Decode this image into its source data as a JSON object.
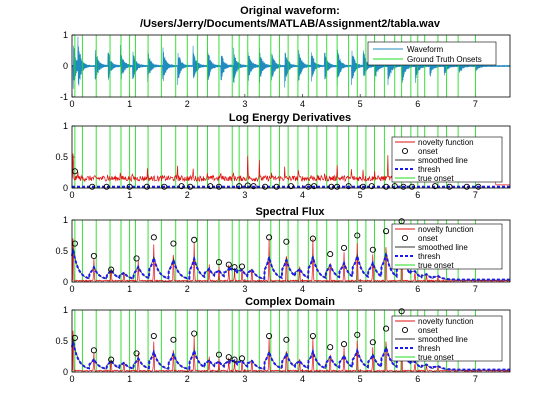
{
  "figure": {
    "background": "#ffffff"
  },
  "colors": {
    "waveform": "#1f8bbf",
    "ground_truth": "#22dd22",
    "novelty": "#e01010",
    "onset_marker": "#000000",
    "smoothed": "#333333",
    "thresh": "#1a1aee",
    "true_onset": "#22dd22"
  },
  "chart_data": [
    {
      "type": "line",
      "title": "Original waveform:",
      "subtitle": "/Users/Jerry/Documents/MATLAB/Assignment2/tabla.wav",
      "xlim": [
        0,
        7.6
      ],
      "ylim": [
        -1,
        1
      ],
      "xticks": [
        "0",
        "1",
        "2",
        "3",
        "4",
        "5",
        "6",
        "7"
      ],
      "yticks": [
        "-1",
        "0",
        "1"
      ],
      "legend": [
        "Waveform",
        "Ground Truth Onsets"
      ],
      "legend_position": "top-right",
      "series": [
        {
          "name": "Waveform",
          "strokes_at": [
            0.02,
            0.1,
            0.4,
            0.62,
            0.84,
            1.05,
            1.31,
            1.57,
            1.83,
            2.1,
            2.35,
            2.58,
            2.8,
            3.05,
            3.25,
            3.46,
            3.69,
            3.93,
            4.15,
            4.38,
            4.6,
            4.85,
            5.05,
            5.25,
            5.48,
            5.72,
            5.95,
            6.2,
            6.45,
            6.72,
            7.0
          ],
          "peak_amplitude": [
            0.85,
            0.9,
            0.7,
            0.6,
            0.7,
            0.65,
            0.6,
            0.7,
            0.65,
            0.7,
            0.65,
            0.6,
            0.7,
            0.65,
            0.6,
            0.6,
            0.7,
            0.65,
            0.6,
            0.6,
            0.7,
            0.65,
            0.6,
            0.6,
            0.75,
            0.8,
            0.7,
            0.5,
            0.4,
            0.3,
            0.2
          ]
        },
        {
          "name": "Ground Truth Onsets",
          "onsets": [
            0.05,
            0.18,
            0.42,
            0.66,
            0.85,
            1.0,
            1.1,
            1.32,
            1.55,
            1.8,
            2.0,
            2.18,
            2.35,
            2.55,
            2.78,
            2.9,
            3.05,
            3.25,
            3.45,
            3.6,
            3.75,
            3.92,
            4.1,
            4.25,
            4.42,
            4.6,
            4.8,
            4.95,
            5.1,
            5.25,
            5.42,
            5.6,
            5.72,
            5.88,
            6.0,
            6.12,
            6.35,
            6.5,
            6.7,
            7.0
          ]
        }
      ]
    },
    {
      "type": "line",
      "title": "Log Energy Derivatives",
      "xlim": [
        0,
        7.6
      ],
      "ylim": [
        0,
        1
      ],
      "xticks": [
        "0",
        "1",
        "2",
        "3",
        "4",
        "5",
        "6",
        "7"
      ],
      "yticks": [
        "0",
        "0.5",
        "1"
      ],
      "legend": [
        "novelty function",
        "onset",
        "smoothed line",
        "thresh",
        "true onset"
      ],
      "legend_position": "right",
      "peaks": [
        0.02,
        0.1,
        0.4,
        0.62,
        0.84,
        1.05,
        1.31,
        1.57,
        1.83,
        2.1,
        2.35,
        2.58,
        2.8,
        3.05,
        3.25,
        3.46,
        3.69,
        3.93,
        4.15,
        4.38,
        4.6,
        4.85,
        5.05,
        5.25,
        5.48,
        5.72,
        5.95,
        6.2,
        6.45,
        6.72,
        7.0
      ],
      "peak_heights": [
        0.75,
        0.3,
        0.25,
        0.3,
        0.35,
        0.3,
        0.35,
        0.2,
        0.45,
        0.4,
        0.3,
        0.35,
        0.35,
        0.6,
        0.5,
        0.3,
        0.35,
        0.4,
        0.3,
        0.3,
        0.45,
        0.4,
        0.3,
        0.35,
        0.55,
        0.3,
        0.35,
        0.25,
        0.2,
        0.2,
        0.15
      ],
      "noise_floor": 0.2,
      "thresh_level": 0.02,
      "onsets_x": [
        0.05,
        0.35,
        0.6,
        1.0,
        1.3,
        1.6,
        1.9,
        2.05,
        2.4,
        2.55,
        2.9,
        3.05,
        3.15,
        3.35,
        3.55,
        3.8,
        4.1,
        4.2,
        4.5,
        4.6,
        4.8,
        5.05,
        5.2,
        5.45,
        5.6,
        5.75,
        5.9,
        6.3,
        6.55,
        6.85,
        7.05
      ],
      "onsets_y": [
        0.27,
        0.02,
        0.02,
        0.02,
        0.02,
        0.02,
        0.03,
        0.02,
        0.03,
        0.02,
        0.03,
        0.04,
        0.03,
        0.02,
        0.02,
        0.03,
        0.02,
        0.03,
        0.02,
        0.02,
        0.03,
        0.02,
        0.03,
        0.02,
        0.03,
        0.02,
        0.02,
        0.03,
        0.02,
        0.02,
        0.02
      ]
    },
    {
      "type": "line",
      "title": "Spectral Flux",
      "xlim": [
        0,
        7.6
      ],
      "ylim": [
        0,
        1
      ],
      "xticks": [
        "0",
        "1",
        "2",
        "3",
        "4",
        "5",
        "6",
        "7"
      ],
      "yticks": [
        "0",
        "0.5",
        "1"
      ],
      "legend": [
        "novelty function",
        "onset",
        "smoothed line",
        "thresh",
        "true onset"
      ],
      "legend_position": "right",
      "peaks": [
        0.02,
        0.38,
        0.68,
        0.9,
        1.15,
        1.42,
        1.76,
        2.12,
        2.38,
        2.55,
        2.72,
        2.82,
        2.95,
        3.12,
        3.42,
        3.72,
        3.95,
        4.18,
        4.48,
        4.72,
        4.95,
        5.22,
        5.45,
        5.72,
        5.95,
        6.15,
        6.35
      ],
      "peak_heights": [
        0.95,
        0.38,
        0.3,
        0.2,
        0.4,
        0.68,
        0.62,
        0.66,
        0.32,
        0.25,
        0.3,
        0.22,
        0.25,
        0.28,
        0.7,
        0.62,
        0.3,
        0.7,
        0.45,
        0.5,
        0.72,
        0.5,
        0.78,
        0.96,
        0.2,
        0.15,
        0.1
      ],
      "onsets_x": [
        0.05,
        0.38,
        0.68,
        1.12,
        1.42,
        1.76,
        2.12,
        2.55,
        2.72,
        2.82,
        2.95,
        3.42,
        3.72,
        4.18,
        4.48,
        4.72,
        4.95,
        5.22,
        5.45,
        5.72
      ],
      "onsets_y": [
        0.62,
        0.42,
        0.2,
        0.38,
        0.72,
        0.62,
        0.68,
        0.32,
        0.28,
        0.24,
        0.25,
        0.72,
        0.65,
        0.7,
        0.45,
        0.55,
        0.75,
        0.52,
        0.82,
        0.98
      ]
    },
    {
      "type": "line",
      "title": "Complex Domain",
      "xlim": [
        0,
        7.6
      ],
      "ylim": [
        0,
        1
      ],
      "xticks": [
        "0",
        "1",
        "2",
        "3",
        "4",
        "5",
        "6",
        "7"
      ],
      "yticks": [
        "0",
        "0.5",
        "1"
      ],
      "legend": [
        "novelty function",
        "onset",
        "smoothed line",
        "thresh",
        "true onset"
      ],
      "legend_position": "right",
      "peaks": [
        0.02,
        0.38,
        0.68,
        0.9,
        1.15,
        1.42,
        1.76,
        2.12,
        2.38,
        2.55,
        2.72,
        2.82,
        2.95,
        3.12,
        3.42,
        3.72,
        3.95,
        4.18,
        4.48,
        4.72,
        4.95,
        5.22,
        5.45,
        5.72,
        5.95,
        6.15,
        6.35
      ],
      "peak_heights": [
        0.9,
        0.32,
        0.28,
        0.2,
        0.35,
        0.55,
        0.5,
        0.6,
        0.28,
        0.22,
        0.25,
        0.2,
        0.22,
        0.25,
        0.55,
        0.5,
        0.25,
        0.55,
        0.4,
        0.42,
        0.58,
        0.45,
        0.68,
        0.95,
        0.18,
        0.14,
        0.1
      ],
      "onsets_x": [
        0.05,
        0.38,
        0.68,
        1.12,
        1.42,
        1.76,
        2.12,
        2.55,
        2.72,
        2.82,
        2.95,
        3.42,
        3.72,
        4.18,
        4.48,
        4.72,
        4.95,
        5.22,
        5.45,
        5.72
      ],
      "onsets_y": [
        0.55,
        0.35,
        0.2,
        0.3,
        0.58,
        0.52,
        0.62,
        0.28,
        0.24,
        0.2,
        0.22,
        0.58,
        0.52,
        0.58,
        0.4,
        0.45,
        0.6,
        0.48,
        0.7,
        0.98
      ]
    }
  ]
}
